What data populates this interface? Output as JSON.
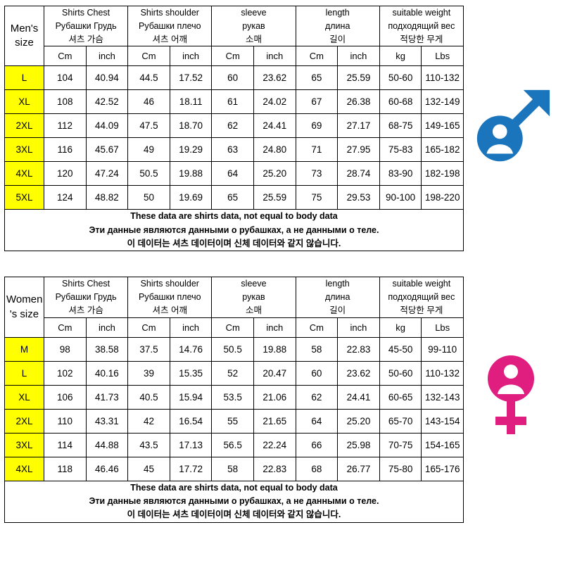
{
  "colors": {
    "male_blue": "#1b75bc",
    "female_pink": "#e01e7f",
    "size_highlight": "#ffff00"
  },
  "chart_data": [
    {
      "type": "table",
      "title": "Men's size",
      "corner_lines": [
        "Men's",
        "size"
      ],
      "icon": "male-symbol",
      "column_groups": [
        {
          "name": "shirts-chest",
          "title_lines": [
            "Shirts Chest",
            "Рубашки Грудь",
            "셔츠 가슴"
          ],
          "units": [
            "Cm",
            "inch"
          ]
        },
        {
          "name": "shirts-shoulder",
          "title_lines": [
            "Shirts shoulder",
            "Рубашки плечо",
            "셔츠 어깨"
          ],
          "units": [
            "Cm",
            "inch"
          ]
        },
        {
          "name": "sleeve",
          "title_lines": [
            "sleeve",
            "рукав",
            "소매"
          ],
          "units": [
            "Cm",
            "inch"
          ]
        },
        {
          "name": "length",
          "title_lines": [
            "length",
            "длина",
            "길이"
          ],
          "units": [
            "Cm",
            "inch"
          ]
        },
        {
          "name": "suitable-weight",
          "title_lines": [
            "suitable weight",
            "подходящий вес",
            "적당한 무게"
          ],
          "units": [
            "kg",
            "Lbs"
          ]
        }
      ],
      "rows": [
        {
          "size": "L",
          "values": [
            "104",
            "40.94",
            "44.5",
            "17.52",
            "60",
            "23.62",
            "65",
            "25.59",
            "50-60",
            "110-132"
          ]
        },
        {
          "size": "XL",
          "values": [
            "108",
            "42.52",
            "46",
            "18.11",
            "61",
            "24.02",
            "67",
            "26.38",
            "60-68",
            "132-149"
          ]
        },
        {
          "size": "2XL",
          "values": [
            "112",
            "44.09",
            "47.5",
            "18.70",
            "62",
            "24.41",
            "69",
            "27.17",
            "68-75",
            "149-165"
          ]
        },
        {
          "size": "3XL",
          "values": [
            "116",
            "45.67",
            "49",
            "19.29",
            "63",
            "24.80",
            "71",
            "27.95",
            "75-83",
            "165-182"
          ]
        },
        {
          "size": "4XL",
          "values": [
            "120",
            "47.24",
            "50.5",
            "19.88",
            "64",
            "25.20",
            "73",
            "28.74",
            "83-90",
            "182-198"
          ]
        },
        {
          "size": "5XL",
          "values": [
            "124",
            "48.82",
            "50",
            "19.69",
            "65",
            "25.59",
            "75",
            "29.53",
            "90-100",
            "198-220"
          ]
        }
      ],
      "footer_lines": [
        "These data are shirts data, not equal to body data",
        "Эти данные являются данными о рубашках, а не данными о теле.",
        "이 데이터는 셔츠 데이터이며 신체 데이터와 같지 않습니다."
      ]
    },
    {
      "type": "table",
      "title": "Women's size",
      "corner_lines": [
        "Women",
        "'s size"
      ],
      "icon": "female-symbol",
      "column_groups": [
        {
          "name": "shirts-chest",
          "title_lines": [
            "Shirts Chest",
            "Рубашки Грудь",
            "셔츠 가슴"
          ],
          "units": [
            "Cm",
            "inch"
          ]
        },
        {
          "name": "shirts-shoulder",
          "title_lines": [
            "Shirts shoulder",
            "Рубашки плечо",
            "셔츠 어깨"
          ],
          "units": [
            "Cm",
            "inch"
          ]
        },
        {
          "name": "sleeve",
          "title_lines": [
            "sleeve",
            "рукав",
            "소매"
          ],
          "units": [
            "Cm",
            "inch"
          ]
        },
        {
          "name": "length",
          "title_lines": [
            "length",
            "длина",
            "길이"
          ],
          "units": [
            "Cm",
            "inch"
          ]
        },
        {
          "name": "suitable-weight",
          "title_lines": [
            "suitable weight",
            "подходящий вес",
            "적당한 무게"
          ],
          "units": [
            "kg",
            "Lbs"
          ]
        }
      ],
      "rows": [
        {
          "size": "M",
          "values": [
            "98",
            "38.58",
            "37.5",
            "14.76",
            "50.5",
            "19.88",
            "58",
            "22.83",
            "45-50",
            "99-110"
          ]
        },
        {
          "size": "L",
          "values": [
            "102",
            "40.16",
            "39",
            "15.35",
            "52",
            "20.47",
            "60",
            "23.62",
            "50-60",
            "110-132"
          ]
        },
        {
          "size": "XL",
          "values": [
            "106",
            "41.73",
            "40.5",
            "15.94",
            "53.5",
            "21.06",
            "62",
            "24.41",
            "60-65",
            "132-143"
          ]
        },
        {
          "size": "2XL",
          "values": [
            "110",
            "43.31",
            "42",
            "16.54",
            "55",
            "21.65",
            "64",
            "25.20",
            "65-70",
            "143-154"
          ]
        },
        {
          "size": "3XL",
          "values": [
            "114",
            "44.88",
            "43.5",
            "17.13",
            "56.5",
            "22.24",
            "66",
            "25.98",
            "70-75",
            "154-165"
          ]
        },
        {
          "size": "4XL",
          "values": [
            "118",
            "46.46",
            "45",
            "17.72",
            "58",
            "22.83",
            "68",
            "26.77",
            "75-80",
            "165-176"
          ]
        }
      ],
      "footer_lines": [
        "These data are shirts data, not equal to body data",
        "Эти данные являются данными о рубашках, а не данными о теле.",
        "이 데이터는 셔츠 데이터이며 신체 데이터와 같지 않습니다."
      ]
    }
  ]
}
